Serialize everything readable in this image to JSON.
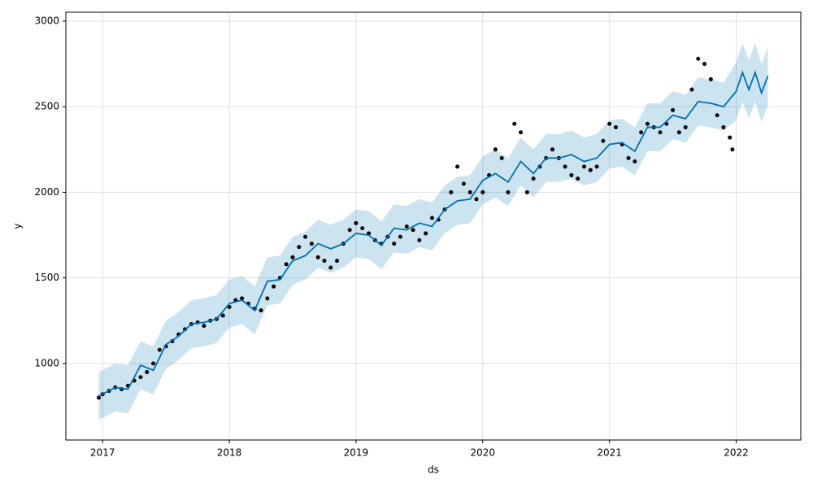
{
  "chart_data": {
    "type": "forecast",
    "xlabel": "ds",
    "ylabel": "y",
    "xlim": [
      2016.71,
      2022.51
    ],
    "ylim": [
      553,
      3052
    ],
    "xticks": [
      2017,
      2018,
      2019,
      2020,
      2021,
      2022
    ],
    "yticks": [
      1000,
      1500,
      2000,
      2500,
      3000
    ],
    "grid": true,
    "points": {
      "color": "#000000",
      "x": [
        2016.97,
        2017.0,
        2017.05,
        2017.1,
        2017.15,
        2017.2,
        2017.25,
        2017.3,
        2017.35,
        2017.4,
        2017.45,
        2017.5,
        2017.55,
        2017.6,
        2017.65,
        2017.7,
        2017.75,
        2017.8,
        2017.85,
        2017.9,
        2017.95,
        2018.0,
        2018.05,
        2018.1,
        2018.15,
        2018.2,
        2018.25,
        2018.3,
        2018.35,
        2018.4,
        2018.45,
        2018.5,
        2018.55,
        2018.6,
        2018.65,
        2018.7,
        2018.75,
        2018.8,
        2018.85,
        2018.9,
        2018.95,
        2019.0,
        2019.05,
        2019.1,
        2019.15,
        2019.2,
        2019.25,
        2019.3,
        2019.35,
        2019.4,
        2019.45,
        2019.5,
        2019.55,
        2019.6,
        2019.65,
        2019.7,
        2019.75,
        2019.8,
        2019.85,
        2019.9,
        2019.95,
        2020.0,
        2020.05,
        2020.1,
        2020.15,
        2020.2,
        2020.25,
        2020.3,
        2020.35,
        2020.4,
        2020.45,
        2020.5,
        2020.55,
        2020.6,
        2020.65,
        2020.7,
        2020.75,
        2020.8,
        2020.85,
        2020.9,
        2020.95,
        2021.0,
        2021.05,
        2021.1,
        2021.15,
        2021.2,
        2021.25,
        2021.3,
        2021.35,
        2021.4,
        2021.45,
        2021.5,
        2021.55,
        2021.6,
        2021.65,
        2021.7,
        2021.75,
        2021.8,
        2021.85,
        2021.9,
        2021.95,
        2021.97
      ],
      "values": [
        800,
        820,
        840,
        860,
        850,
        870,
        900,
        920,
        950,
        1000,
        1080,
        1100,
        1130,
        1170,
        1200,
        1230,
        1240,
        1220,
        1250,
        1260,
        1280,
        1330,
        1370,
        1380,
        1350,
        1320,
        1310,
        1380,
        1450,
        1500,
        1580,
        1620,
        1680,
        1740,
        1700,
        1620,
        1600,
        1560,
        1600,
        1700,
        1780,
        1820,
        1790,
        1760,
        1720,
        1700,
        1740,
        1700,
        1740,
        1800,
        1780,
        1720,
        1760,
        1850,
        1840,
        1900,
        2000,
        2150,
        2050,
        2000,
        1960,
        2000,
        2100,
        2250,
        2200,
        2000,
        2400,
        2350,
        2000,
        2080,
        2150,
        2200,
        2250,
        2200,
        2150,
        2100,
        2080,
        2150,
        2130,
        2150,
        2300,
        2400,
        2380,
        2280,
        2200,
        2180,
        2350,
        2400,
        2380,
        2350,
        2400,
        2480,
        2350,
        2380,
        2600,
        2780,
        2750,
        2660,
        2450,
        2380,
        2320,
        2250
      ]
    },
    "forecast": {
      "color": "#0072B2",
      "x": [
        2016.97,
        2017.1,
        2017.2,
        2017.3,
        2017.4,
        2017.5,
        2017.6,
        2017.7,
        2017.8,
        2017.9,
        2018.0,
        2018.1,
        2018.2,
        2018.3,
        2018.4,
        2018.5,
        2018.6,
        2018.7,
        2018.8,
        2018.9,
        2019.0,
        2019.1,
        2019.2,
        2019.3,
        2019.4,
        2019.5,
        2019.6,
        2019.7,
        2019.8,
        2019.9,
        2020.0,
        2020.1,
        2020.2,
        2020.3,
        2020.4,
        2020.5,
        2020.6,
        2020.7,
        2020.8,
        2020.9,
        2021.0,
        2021.1,
        2021.2,
        2021.3,
        2021.4,
        2021.5,
        2021.6,
        2021.7,
        2021.8,
        2021.9,
        2022.0,
        2022.05,
        2022.1,
        2022.15,
        2022.2,
        2022.25
      ],
      "values": [
        810,
        860,
        850,
        990,
        960,
        1110,
        1160,
        1230,
        1240,
        1260,
        1350,
        1370,
        1310,
        1480,
        1490,
        1600,
        1630,
        1700,
        1670,
        1700,
        1760,
        1750,
        1690,
        1790,
        1780,
        1820,
        1800,
        1900,
        1950,
        1960,
        2070,
        2110,
        2060,
        2180,
        2110,
        2200,
        2200,
        2220,
        2180,
        2200,
        2280,
        2290,
        2240,
        2380,
        2380,
        2450,
        2430,
        2530,
        2520,
        2500,
        2590,
        2700,
        2600,
        2700,
        2580,
        2680
      ],
      "lower": [
        670,
        720,
        710,
        850,
        820,
        970,
        1020,
        1090,
        1100,
        1120,
        1210,
        1230,
        1170,
        1340,
        1350,
        1460,
        1490,
        1560,
        1530,
        1560,
        1620,
        1610,
        1550,
        1650,
        1640,
        1680,
        1660,
        1760,
        1810,
        1820,
        1930,
        1970,
        1920,
        2040,
        1970,
        2060,
        2060,
        2080,
        2040,
        2060,
        2140,
        2150,
        2100,
        2240,
        2240,
        2310,
        2290,
        2390,
        2380,
        2360,
        2420,
        2530,
        2430,
        2530,
        2410,
        2510
      ],
      "upper": [
        950,
        1000,
        990,
        1130,
        1100,
        1250,
        1300,
        1370,
        1380,
        1400,
        1490,
        1510,
        1450,
        1620,
        1630,
        1740,
        1770,
        1840,
        1810,
        1840,
        1900,
        1890,
        1830,
        1930,
        1920,
        1960,
        1940,
        2040,
        2090,
        2100,
        2210,
        2250,
        2200,
        2320,
        2250,
        2340,
        2340,
        2360,
        2320,
        2340,
        2420,
        2430,
        2380,
        2520,
        2520,
        2590,
        2570,
        2670,
        2660,
        2640,
        2760,
        2870,
        2770,
        2870,
        2750,
        2850
      ]
    }
  }
}
